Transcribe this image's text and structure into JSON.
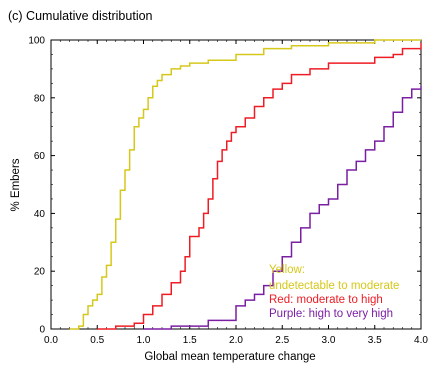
{
  "chart_data": {
    "type": "line",
    "title": "(c) Cumulative distribution",
    "xlabel": "Global mean temperature change",
    "ylabel": "% Embers",
    "xlim": [
      0.0,
      4.0
    ],
    "ylim": [
      0,
      100
    ],
    "xticks": [
      "0.0",
      "0.5",
      "1.0",
      "1.5",
      "2.0",
      "2.5",
      "3.0",
      "3.5",
      "4.0"
    ],
    "yticks": [
      "0",
      "20",
      "40",
      "60",
      "80",
      "100"
    ],
    "step": true,
    "legend": {
      "placement": "bottom-right",
      "entries": [
        {
          "text": "Yellow:",
          "color": "#d6c81a"
        },
        {
          "text": "undetectable to moderate",
          "color": "#d6c81a"
        },
        {
          "text": "Red: moderate to high",
          "color": "#ee1c24"
        },
        {
          "text": "Purple: high to very high",
          "color": "#7b1fa2"
        }
      ]
    },
    "series": [
      {
        "color": "#d6c81a",
        "points": [
          [
            0.2,
            0
          ],
          [
            0.3,
            1
          ],
          [
            0.35,
            5
          ],
          [
            0.4,
            8
          ],
          [
            0.45,
            10
          ],
          [
            0.5,
            12
          ],
          [
            0.55,
            18
          ],
          [
            0.6,
            22
          ],
          [
            0.65,
            30
          ],
          [
            0.7,
            38
          ],
          [
            0.75,
            48
          ],
          [
            0.8,
            55
          ],
          [
            0.85,
            62
          ],
          [
            0.9,
            70
          ],
          [
            0.95,
            73
          ],
          [
            1.0,
            76
          ],
          [
            1.05,
            80
          ],
          [
            1.1,
            84
          ],
          [
            1.15,
            86
          ],
          [
            1.2,
            88
          ],
          [
            1.3,
            90
          ],
          [
            1.4,
            91
          ],
          [
            1.5,
            92
          ],
          [
            1.7,
            93
          ],
          [
            2.0,
            95
          ],
          [
            2.3,
            97
          ],
          [
            2.6,
            98
          ],
          [
            3.0,
            99
          ],
          [
            3.5,
            100
          ]
        ]
      },
      {
        "color": "#ee1c24",
        "points": [
          [
            0.5,
            0
          ],
          [
            0.7,
            1
          ],
          [
            0.9,
            2
          ],
          [
            1.0,
            5
          ],
          [
            1.1,
            8
          ],
          [
            1.2,
            12
          ],
          [
            1.3,
            16
          ],
          [
            1.4,
            20
          ],
          [
            1.45,
            25
          ],
          [
            1.5,
            32
          ],
          [
            1.6,
            35
          ],
          [
            1.65,
            40
          ],
          [
            1.7,
            45
          ],
          [
            1.75,
            52
          ],
          [
            1.8,
            58
          ],
          [
            1.85,
            62
          ],
          [
            1.9,
            65
          ],
          [
            1.95,
            68
          ],
          [
            2.0,
            70
          ],
          [
            2.1,
            73
          ],
          [
            2.2,
            77
          ],
          [
            2.3,
            80
          ],
          [
            2.4,
            83
          ],
          [
            2.5,
            85
          ],
          [
            2.6,
            88
          ],
          [
            2.8,
            90
          ],
          [
            3.0,
            92
          ],
          [
            3.5,
            94
          ],
          [
            3.7,
            95
          ],
          [
            3.8,
            97
          ],
          [
            4.0,
            99
          ]
        ]
      },
      {
        "color": "#7b1fa2",
        "points": [
          [
            1.0,
            0
          ],
          [
            1.3,
            1
          ],
          [
            1.7,
            3
          ],
          [
            2.0,
            8
          ],
          [
            2.1,
            10
          ],
          [
            2.2,
            12
          ],
          [
            2.3,
            15
          ],
          [
            2.4,
            20
          ],
          [
            2.5,
            25
          ],
          [
            2.6,
            30
          ],
          [
            2.7,
            35
          ],
          [
            2.8,
            40
          ],
          [
            2.9,
            43
          ],
          [
            3.0,
            45
          ],
          [
            3.1,
            50
          ],
          [
            3.2,
            55
          ],
          [
            3.3,
            58
          ],
          [
            3.4,
            62
          ],
          [
            3.5,
            65
          ],
          [
            3.6,
            70
          ],
          [
            3.7,
            75
          ],
          [
            3.8,
            80
          ],
          [
            3.9,
            83
          ],
          [
            4.0,
            84
          ]
        ]
      }
    ]
  }
}
